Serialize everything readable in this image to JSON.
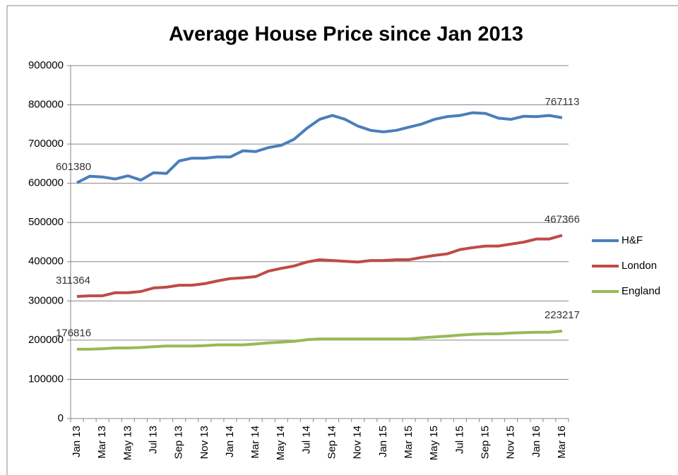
{
  "chart_data": {
    "type": "line",
    "title": "Average House Price since Jan 2013",
    "categories": [
      "Jan 13",
      null,
      "Mar 13",
      null,
      "May 13",
      null,
      "Jul 13",
      null,
      "Sep 13",
      null,
      "Nov 13",
      null,
      "Jan 14",
      null,
      "Mar 14",
      null,
      "May 14",
      null,
      "Jul 14",
      null,
      "Sep 14",
      null,
      "Nov 14",
      null,
      "Jan 15",
      null,
      "Mar 15",
      null,
      "May 15",
      null,
      "Jul 15",
      null,
      "Sep 15",
      null,
      "Nov 15",
      null,
      "Jan 16",
      null,
      "Mar 16"
    ],
    "series": [
      {
        "name": "H&F",
        "color": "#4a7ebb",
        "values": [
          601380,
          618000,
          616000,
          611000,
          619000,
          608000,
          627000,
          625000,
          657000,
          664000,
          664000,
          667000,
          667000,
          683000,
          681000,
          691000,
          697000,
          712000,
          740000,
          763000,
          773000,
          763000,
          746000,
          735000,
          731000,
          735000,
          743000,
          751000,
          763000,
          770000,
          773000,
          780000,
          778000,
          766000,
          763000,
          771000,
          770000,
          773000,
          767113
        ]
      },
      {
        "name": "London",
        "color": "#be4b48",
        "values": [
          311364,
          313000,
          313000,
          321000,
          321000,
          324000,
          333000,
          335000,
          340000,
          340000,
          344000,
          351000,
          357000,
          359000,
          362000,
          376000,
          383000,
          389000,
          399000,
          405000,
          403000,
          401000,
          399000,
          403000,
          403000,
          405000,
          405000,
          411000,
          416000,
          420000,
          431000,
          436000,
          440000,
          440000,
          445000,
          450000,
          458000,
          458000,
          467366
        ]
      },
      {
        "name": "England",
        "color": "#98b954",
        "values": [
          176816,
          177000,
          178000,
          180000,
          180000,
          181000,
          183000,
          185000,
          185000,
          185000,
          186000,
          188000,
          188000,
          188000,
          190000,
          193000,
          195000,
          197000,
          201000,
          203000,
          203000,
          203000,
          203000,
          203000,
          203000,
          203000,
          203000,
          206000,
          208000,
          210000,
          213000,
          215000,
          216000,
          216000,
          218000,
          219000,
          220000,
          220000,
          223217
        ]
      }
    ],
    "ylim": [
      0,
      900000
    ],
    "yticks": [
      0,
      100000,
      200000,
      300000,
      400000,
      500000,
      600000,
      700000,
      800000,
      900000
    ],
    "grid": true,
    "legend": "right"
  }
}
